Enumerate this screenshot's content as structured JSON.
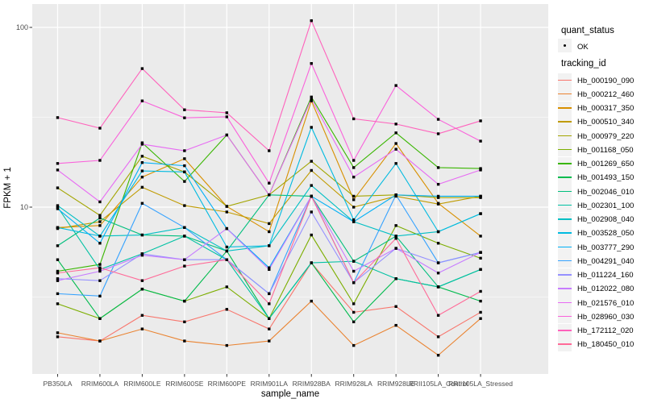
{
  "style": {
    "panel_bg": "#EBEBEB",
    "grid_color": "#FFFFFF",
    "tick_color": "#333333",
    "tick_label_color": "#4D4D4D",
    "title_color": "#000000",
    "point_color": "#000000",
    "legend_key_bg": "#F2F2F2"
  },
  "chart_data": {
    "type": "line",
    "yscale": "log10",
    "xlabel": "sample_name",
    "ylabel": "FPKM + 1",
    "grid": true,
    "legend_position": "right",
    "marker": "small-black-point",
    "ylim": [
      1.17,
      135
    ],
    "y_ticks": [
      {
        "label": "100",
        "value": 100
      },
      {
        "label": "10",
        "value": 10
      }
    ],
    "y_minor_gridlines": [
      3.1623,
      31.623
    ],
    "x": [
      "PB350LA",
      "RRIM600LA",
      "RRIM600LE",
      "RRIM600SE",
      "RRIM600PE",
      "RRIM901LA",
      "RRIM928BA",
      "RRIM928LA",
      "RRIM928LE",
      "RRII105LA_Control",
      "RRII105LA_Stressed"
    ],
    "quant_status": {
      "title": "quant_status",
      "items": [
        {
          "label": "OK",
          "marker": "black-point"
        }
      ]
    },
    "series_legend_title": "tracking_id",
    "series": [
      {
        "name": "Hb_000190_090",
        "color": "#F8766D",
        "values": [
          1.9,
          1.8,
          2.5,
          2.3,
          2.7,
          2.1,
          4.9,
          2.6,
          2.8,
          1.9,
          2.6
        ]
      },
      {
        "name": "Hb_000212_460",
        "color": "#EA8331",
        "values": [
          2.0,
          1.8,
          2.1,
          1.8,
          1.7,
          1.8,
          3.0,
          1.7,
          2.2,
          1.5,
          2.4
        ]
      },
      {
        "name": "Hb_000317_350",
        "color": "#D89000",
        "values": [
          7.7,
          7.9,
          14.7,
          18.6,
          10.1,
          7.3,
          39.0,
          11.0,
          22.6,
          10.5,
          6.9
        ]
      },
      {
        "name": "Hb_000510_340",
        "color": "#C09B00",
        "values": [
          7.6,
          8.3,
          12.9,
          10.2,
          9.4,
          8.1,
          16.0,
          10.0,
          11.5,
          10.4,
          11.5
        ]
      },
      {
        "name": "Hb_000979_220",
        "color": "#A3A500",
        "values": [
          12.8,
          9.0,
          19.2,
          15.7,
          10.1,
          11.7,
          18.0,
          11.5,
          11.7,
          11.3,
          11.3
        ]
      },
      {
        "name": "Hb_001168_050",
        "color": "#7CAE00",
        "values": [
          2.9,
          2.4,
          3.5,
          3.0,
          3.6,
          2.4,
          7.0,
          2.9,
          7.9,
          6.3,
          5.2
        ]
      },
      {
        "name": "Hb_001269_650",
        "color": "#39B600",
        "values": [
          4.4,
          4.8,
          22.8,
          13.9,
          25.2,
          11.7,
          41.0,
          16.6,
          25.9,
          16.6,
          16.4
        ]
      },
      {
        "name": "Hb_001493_150",
        "color": "#00BB4E",
        "values": [
          5.1,
          2.4,
          3.5,
          3.0,
          5.7,
          2.4,
          4.9,
          2.3,
          4.0,
          3.6,
          3.0
        ]
      },
      {
        "name": "Hb_002046_010",
        "color": "#00BF7D",
        "values": [
          6.1,
          8.7,
          7.0,
          6.9,
          5.7,
          11.7,
          11.5,
          5.0,
          6.9,
          3.6,
          4.5
        ]
      },
      {
        "name": "Hb_002301_100",
        "color": "#00C1A3",
        "values": [
          10.0,
          4.5,
          5.5,
          6.9,
          5.1,
          2.4,
          4.9,
          5.0,
          4.0,
          3.6,
          4.5
        ]
      },
      {
        "name": "Hb_002908_040",
        "color": "#00BFC4",
        "values": [
          10.2,
          6.9,
          7.0,
          7.7,
          5.7,
          6.1,
          13.2,
          8.3,
          6.9,
          7.3,
          9.2
        ]
      },
      {
        "name": "Hb_003528_050",
        "color": "#00BAE0",
        "values": [
          7.7,
          6.9,
          15.9,
          15.7,
          6.0,
          6.1,
          27.8,
          8.5,
          17.5,
          7.3,
          9.2
        ]
      },
      {
        "name": "Hb_003777_290",
        "color": "#00B0F6",
        "values": [
          9.8,
          6.3,
          17.7,
          17.0,
          7.6,
          4.6,
          11.5,
          8.3,
          11.7,
          11.5,
          11.5
        ]
      },
      {
        "name": "Hb_004291_040",
        "color": "#35A2FF",
        "values": [
          3.3,
          3.2,
          10.5,
          7.7,
          5.1,
          3.3,
          11.5,
          3.8,
          11.7,
          4.9,
          5.6
        ]
      },
      {
        "name": "Hb_011224_160",
        "color": "#9590FF",
        "values": [
          4.0,
          3.9,
          5.5,
          5.1,
          5.1,
          3.3,
          9.4,
          3.8,
          5.9,
          4.9,
          5.6
        ]
      },
      {
        "name": "Hb_012022_080",
        "color": "#C77CFF",
        "values": [
          3.9,
          4.4,
          5.4,
          5.1,
          7.6,
          4.5,
          11.5,
          4.4,
          5.9,
          4.3,
          5.6
        ]
      },
      {
        "name": "Hb_021576_010",
        "color": "#E76BF3",
        "values": [
          16.1,
          10.7,
          22.4,
          20.6,
          25.2,
          11.7,
          40.0,
          14.7,
          21.0,
          13.4,
          16.1
        ]
      },
      {
        "name": "Hb_028960_030",
        "color": "#FA62DB",
        "values": [
          17.5,
          18.2,
          39.0,
          31.4,
          31.8,
          13.6,
          63.0,
          18.2,
          47.5,
          30.8,
          23.3
        ]
      },
      {
        "name": "Hb_172112_020",
        "color": "#FF62BC",
        "values": [
          31.5,
          27.5,
          59.0,
          34.8,
          33.5,
          20.6,
          109.0,
          31.0,
          29.0,
          25.6,
          30.2
        ]
      },
      {
        "name": "Hb_180450_010",
        "color": "#FF6A98",
        "values": [
          4.3,
          4.6,
          3.9,
          4.7,
          5.1,
          2.9,
          11.5,
          3.8,
          6.7,
          2.5,
          3.4
        ]
      }
    ]
  }
}
